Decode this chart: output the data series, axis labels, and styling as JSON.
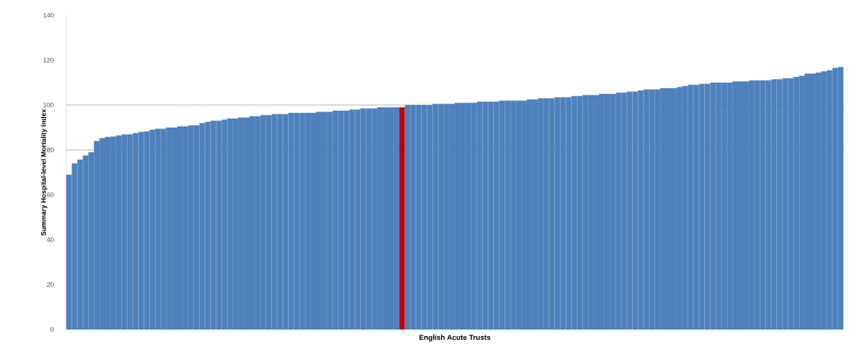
{
  "chart_data": {
    "type": "bar",
    "xlabel": "English Acute Trusts",
    "ylabel": "Summary Hospital-level Mortality Index",
    "categories": [
      null,
      null,
      null,
      null,
      null,
      null,
      null,
      null,
      null,
      null,
      null,
      null,
      null,
      null,
      null,
      null,
      null,
      null,
      null,
      null,
      null,
      null,
      null,
      null,
      null,
      null,
      null,
      null,
      null,
      null,
      null,
      null,
      null,
      null,
      null,
      null,
      null,
      null,
      null,
      null,
      null,
      null,
      null,
      null,
      null,
      null,
      null,
      null,
      null,
      null,
      null,
      null,
      null,
      null,
      null,
      null,
      null,
      null,
      null,
      null,
      null,
      null,
      null,
      null,
      null,
      null,
      null,
      null,
      null,
      null,
      null,
      null,
      null,
      null,
      null,
      null,
      null,
      null,
      null,
      null,
      null,
      null,
      null,
      null,
      null,
      null,
      null,
      null,
      null,
      null,
      null,
      null,
      null,
      null,
      null,
      null,
      null,
      null,
      null,
      null,
      null,
      null,
      null,
      null,
      null,
      null,
      null,
      null,
      null,
      null,
      null,
      null,
      null,
      null,
      null,
      null,
      null,
      null,
      null,
      null,
      null,
      null,
      null,
      null,
      null,
      null,
      null,
      null,
      null,
      null,
      null,
      null,
      null,
      null,
      null,
      null,
      null,
      null,
      null,
      null
    ],
    "values": [
      69,
      74,
      75.7,
      77.5,
      79,
      84,
      85.3,
      85.8,
      86,
      86.5,
      87,
      87,
      87.5,
      88,
      88.3,
      89,
      89.5,
      89.5,
      90,
      90,
      90.5,
      90.5,
      91,
      91,
      92,
      92.5,
      93,
      93,
      93.5,
      94,
      94,
      94.5,
      94.5,
      95,
      95,
      95.5,
      95.5,
      96,
      96,
      96,
      96.5,
      96.5,
      96.5,
      96.5,
      96.5,
      97,
      97,
      97,
      97.5,
      97.5,
      97.5,
      98,
      98,
      98.5,
      98.5,
      98.5,
      99,
      99,
      99,
      99,
      99,
      100,
      100,
      100,
      100,
      100,
      100.5,
      100.5,
      100.5,
      100.5,
      101,
      101,
      101,
      101,
      101.5,
      101.5,
      101.5,
      101.5,
      102,
      102,
      102,
      102,
      102,
      102.5,
      102.5,
      103,
      103,
      103,
      103.5,
      103.5,
      103.5,
      104,
      104,
      104.5,
      104.5,
      104.5,
      105,
      105,
      105,
      105.5,
      105.5,
      106,
      106,
      106.5,
      107,
      107,
      107,
      107.5,
      107.5,
      107.5,
      108,
      108.5,
      109,
      109,
      109.5,
      109.5,
      110,
      110,
      110,
      110,
      110.5,
      110.5,
      110.5,
      111,
      111,
      111,
      111,
      111.5,
      111.5,
      112,
      112,
      112.5,
      113,
      114,
      114,
      114.5,
      115,
      115.5,
      116.5,
      117
    ],
    "colors": [
      "#4f81bd",
      "#4f81bd",
      "#4f81bd",
      "#4f81bd",
      "#4f81bd",
      "#4f81bd",
      "#4f81bd",
      "#4f81bd",
      "#4f81bd",
      "#4f81bd",
      "#4f81bd",
      "#4f81bd",
      "#4f81bd",
      "#4f81bd",
      "#4f81bd",
      "#4f81bd",
      "#4f81bd",
      "#4f81bd",
      "#4f81bd",
      "#4f81bd",
      "#4f81bd",
      "#4f81bd",
      "#4f81bd",
      "#4f81bd",
      "#4f81bd",
      "#4f81bd",
      "#4f81bd",
      "#4f81bd",
      "#4f81bd",
      "#4f81bd",
      "#4f81bd",
      "#4f81bd",
      "#4f81bd",
      "#4f81bd",
      "#4f81bd",
      "#4f81bd",
      "#4f81bd",
      "#4f81bd",
      "#4f81bd",
      "#4f81bd",
      "#4f81bd",
      "#4f81bd",
      "#4f81bd",
      "#4f81bd",
      "#4f81bd",
      "#4f81bd",
      "#4f81bd",
      "#4f81bd",
      "#4f81bd",
      "#4f81bd",
      "#4f81bd",
      "#4f81bd",
      "#4f81bd",
      "#4f81bd",
      "#4f81bd",
      "#4f81bd",
      "#4f81bd",
      "#4f81bd",
      "#4f81bd",
      "#4f81bd",
      "#c00000",
      "#4f81bd",
      "#4f81bd",
      "#4f81bd",
      "#4f81bd",
      "#4f81bd",
      "#4f81bd",
      "#4f81bd",
      "#4f81bd",
      "#4f81bd",
      "#4f81bd",
      "#4f81bd",
      "#4f81bd",
      "#4f81bd",
      "#4f81bd",
      "#4f81bd",
      "#4f81bd",
      "#4f81bd",
      "#4f81bd",
      "#4f81bd",
      "#4f81bd",
      "#4f81bd",
      "#4f81bd",
      "#4f81bd",
      "#4f81bd",
      "#4f81bd",
      "#4f81bd",
      "#4f81bd",
      "#4f81bd",
      "#4f81bd",
      "#4f81bd",
      "#4f81bd",
      "#4f81bd",
      "#4f81bd",
      "#4f81bd",
      "#4f81bd",
      "#4f81bd",
      "#4f81bd",
      "#4f81bd",
      "#4f81bd",
      "#4f81bd",
      "#4f81bd",
      "#4f81bd",
      "#4f81bd",
      "#4f81bd",
      "#4f81bd",
      "#4f81bd",
      "#4f81bd",
      "#4f81bd",
      "#4f81bd",
      "#4f81bd",
      "#4f81bd",
      "#4f81bd",
      "#4f81bd",
      "#4f81bd",
      "#4f81bd",
      "#4f81bd",
      "#4f81bd",
      "#4f81bd",
      "#4f81bd",
      "#4f81bd",
      "#4f81bd",
      "#4f81bd",
      "#4f81bd",
      "#4f81bd",
      "#4f81bd",
      "#4f81bd",
      "#4f81bd",
      "#4f81bd",
      "#4f81bd",
      "#4f81bd",
      "#4f81bd",
      "#4f81bd",
      "#4f81bd",
      "#4f81bd",
      "#4f81bd",
      "#4f81bd",
      "#4f81bd",
      "#4f81bd",
      "#4f81bd"
    ],
    "ylim": [
      0,
      140
    ],
    "yticks": [
      0,
      20,
      40,
      60,
      80,
      100,
      120,
      140
    ],
    "ref_lines": [
      {
        "axis": "y",
        "value": 80,
        "color": "#a6a6a6"
      },
      {
        "axis": "y",
        "value": 100,
        "color": "#a6a6a6"
      }
    ]
  }
}
